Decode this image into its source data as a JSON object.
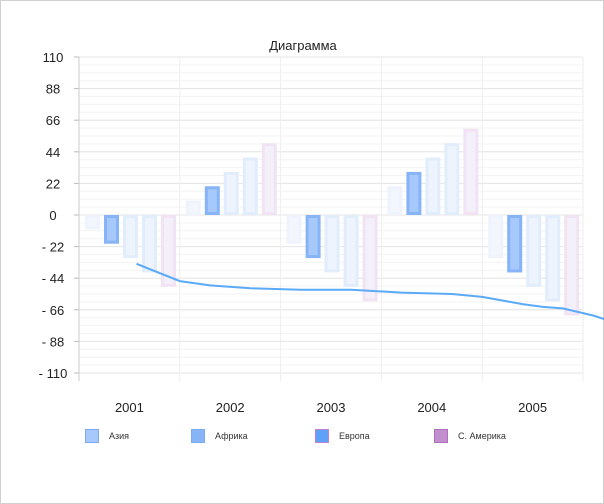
{
  "chart_data": {
    "type": "bar",
    "title": "Диаграмма",
    "categories": [
      "2001",
      "2002",
      "2003",
      "2004",
      "2005"
    ],
    "ylim": [
      -110,
      110
    ],
    "yticks": [
      "110",
      "88",
      "66",
      "44",
      "22",
      "0",
      "- 22",
      "- 44",
      "- 66",
      "- 88",
      "- 110"
    ],
    "ytick_values": [
      110,
      88,
      66,
      44,
      22,
      0,
      -22,
      -44,
      -66,
      -88,
      -110
    ],
    "grid": true,
    "legend_position": "bottom",
    "highlighted_series": 1,
    "series": [
      {
        "name": "Азия",
        "color": "#a6c8fa",
        "values": [
          -10,
          10,
          -20,
          20,
          -30
        ]
      },
      {
        "name": "Африка",
        "color": "#87b4f7",
        "values": [
          -20,
          20,
          -30,
          30,
          -40
        ]
      },
      {
        "name": "Европа",
        "color": "#5fa0f9",
        "values": [
          -30,
          30,
          -40,
          40,
          -50
        ]
      },
      {
        "name": "С. Америка",
        "color": "#c190cc",
        "values": [
          -40,
          40,
          -50,
          50,
          -60
        ]
      },
      {
        "color": "#e8c8e8",
        "values": [
          -50,
          50,
          -60,
          60,
          -70
        ]
      }
    ],
    "line": {
      "color": "#5aaaf8",
      "x": [
        0.57,
        1.0,
        1.3,
        1.7,
        2.2,
        2.7,
        3.2,
        3.7,
        4.0,
        4.4,
        4.6,
        4.8,
        5.1,
        5.37
      ],
      "y": [
        -34,
        -46,
        -49,
        -51,
        -52,
        -52,
        -54,
        -55,
        -57,
        -62,
        -64,
        -65,
        -70,
        -76
      ]
    }
  }
}
